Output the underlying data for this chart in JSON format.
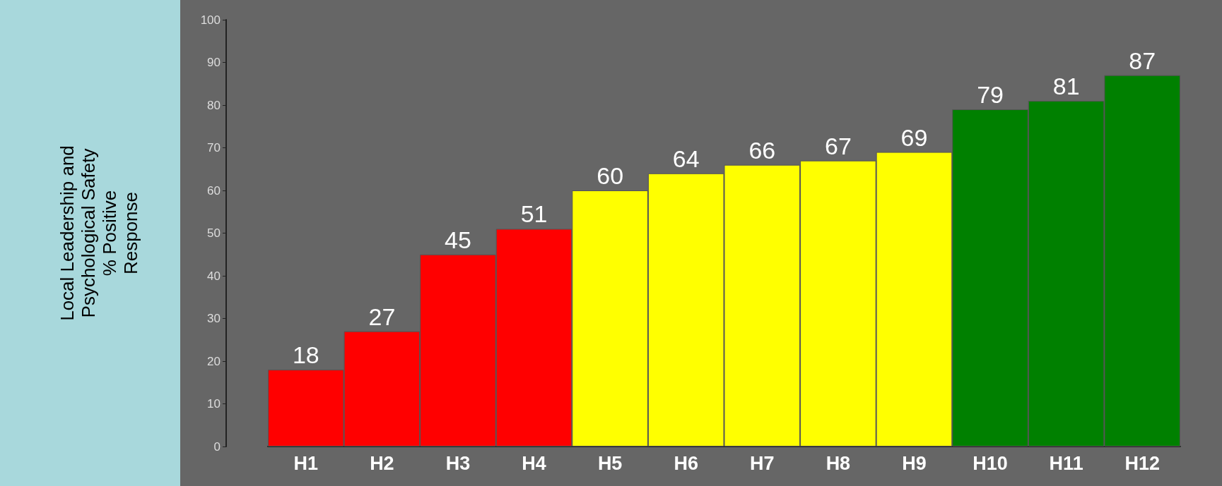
{
  "chart_data": {
    "type": "bar",
    "ylabel": "Local Leadership and\nPsychological Safety\n% Positive\nResponse",
    "categories": [
      "H1",
      "H2",
      "H3",
      "H4",
      "H5",
      "H6",
      "H7",
      "H8",
      "H9",
      "H10",
      "H11",
      "H12"
    ],
    "values": [
      18,
      27,
      45,
      51,
      60,
      64,
      66,
      67,
      69,
      79,
      81,
      87
    ],
    "colors": [
      "#ff0000",
      "#ff0000",
      "#ff0000",
      "#ff0000",
      "#ffff00",
      "#ffff00",
      "#ffff00",
      "#ffff00",
      "#ffff00",
      "#008000",
      "#008000",
      "#008000"
    ],
    "ylim": [
      0,
      100
    ],
    "yticks": [
      0,
      10,
      20,
      30,
      40,
      50,
      60,
      70,
      80,
      90,
      100
    ],
    "data_labels": true,
    "grid": false
  }
}
